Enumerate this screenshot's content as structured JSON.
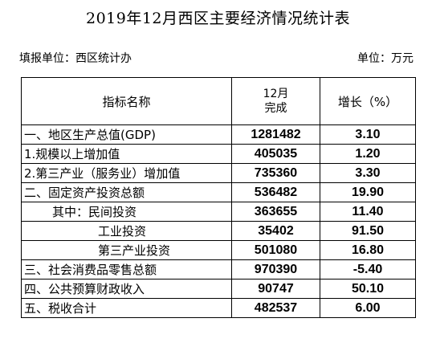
{
  "title": "2019年12月西区主要经济情况统计表",
  "reporting_unit": "填报单位：西区统计办",
  "unit": "单位：万元",
  "headers": {
    "indicator": "指标名称",
    "month_line1": "12月",
    "month_line2": "完成",
    "growth": "增长（%）"
  },
  "rows": [
    {
      "name": "一、地区生产总值(GDP)",
      "value": "1281482",
      "growth": "3.10"
    },
    {
      "name": "1.规模以上增加值",
      "value": "405035",
      "growth": "1.20"
    },
    {
      "name": "2.第三产业（服务业）增加值",
      "value": "735360",
      "growth": "3.30"
    },
    {
      "name": "二、固定资产投资总额",
      "value": "536482",
      "growth": "19.90"
    },
    {
      "name": "其中：民间投资",
      "value": "363655",
      "growth": "11.40"
    },
    {
      "name": "工业投资",
      "value": "35402",
      "growth": "91.50"
    },
    {
      "name": "第三产业投资",
      "value": "501080",
      "growth": "16.80"
    },
    {
      "name": "三、社会消费品零售总额",
      "value": "970390",
      "growth": "-5.40"
    },
    {
      "name": "四、公共预算财政收入",
      "value": "90747",
      "growth": "50.10"
    },
    {
      "name": "五、税收合计",
      "value": "482537",
      "growth": "6.00"
    }
  ]
}
